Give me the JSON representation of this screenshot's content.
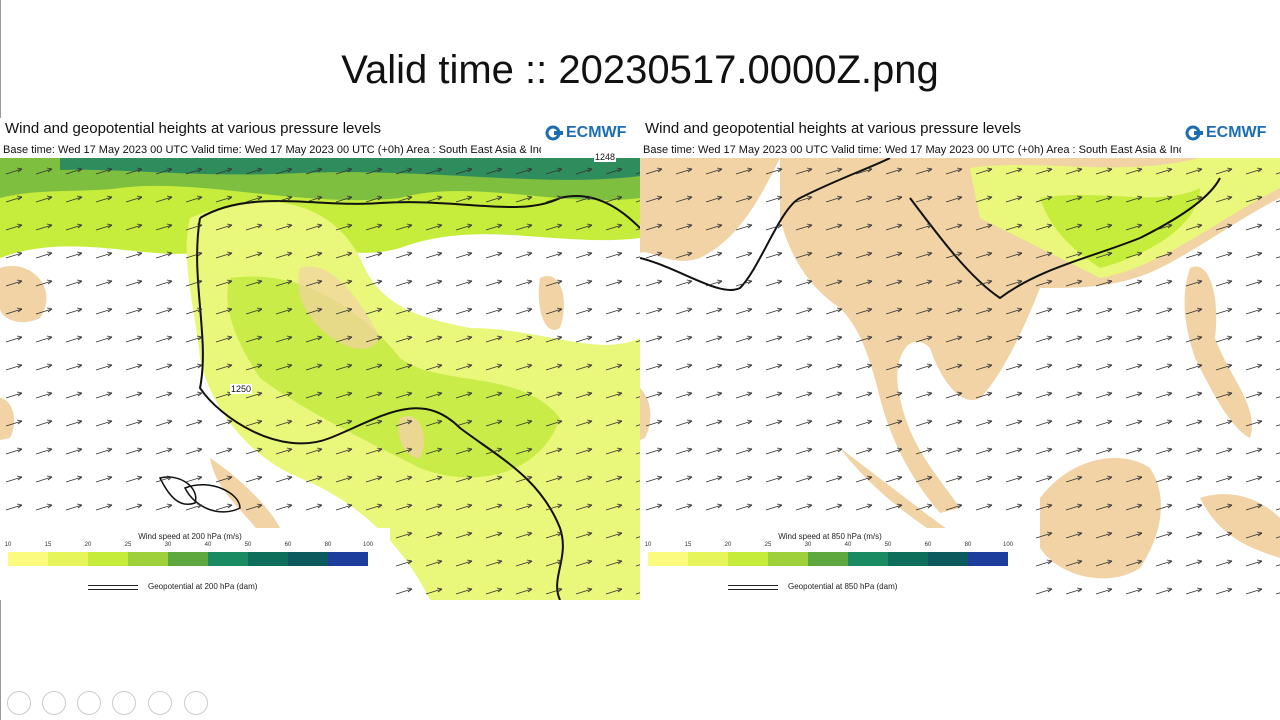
{
  "slide": {
    "title": "Valid time :: 20230517.0000Z.png"
  },
  "panels": [
    {
      "heading": "Wind and geopotential heights at various pressure levels",
      "logo": "ECMWF",
      "base_time": "Base time: Wed 17 May 2023 00 UTC Valid time: Wed 17 May 2023 00 UTC (+0h) Area : South East Asia & Indonesia",
      "contour_labels": [
        "1248",
        "1250"
      ],
      "legend": {
        "title": "Wind speed at 200 hPa (m/s)",
        "ticks": [
          "10",
          "15",
          "20",
          "25",
          "30",
          "40",
          "50",
          "60",
          "80",
          "100"
        ],
        "line_label": "Geopotential at 200 hPa (dam)"
      }
    },
    {
      "heading": "Wind and geopotential heights at various pressure levels",
      "logo": "ECMWF",
      "base_time": "Base time: Wed 17 May 2023 00 UTC Valid time: Wed 17 May 2023 00 UTC (+0h) Area : South East Asia & Indonesia",
      "contour_labels": [],
      "legend": {
        "title": "Wind speed at 850 hPa (m/s)",
        "ticks": [
          "10",
          "15",
          "20",
          "25",
          "30",
          "40",
          "50",
          "60",
          "80",
          "100"
        ],
        "line_label": "Geopotential at 850 hPa (dam)"
      }
    }
  ]
}
